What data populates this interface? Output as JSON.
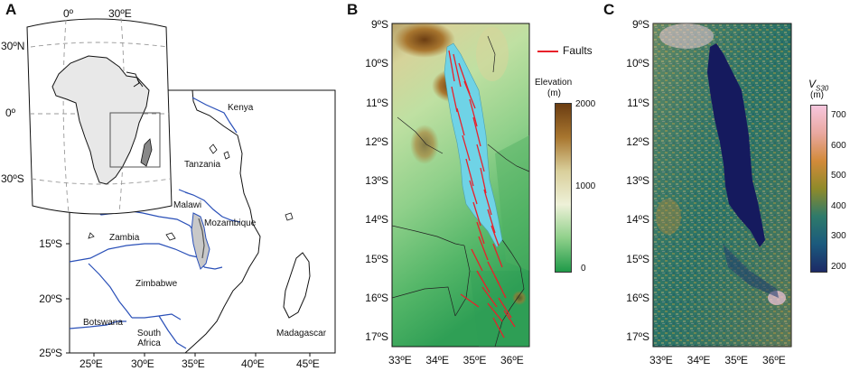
{
  "panels": {
    "a": {
      "letter": "A",
      "inset": {
        "lon_ticks": [
          "0º",
          "30ºE"
        ],
        "lat_ticks": [
          "30ºN",
          "0º",
          "30ºS"
        ]
      },
      "lat_ticks": [
        "15ºS",
        "20ºS",
        "25ºS"
      ],
      "lon_ticks": [
        "25ºE",
        "30ºE",
        "35ºE",
        "40ºE",
        "45ºE"
      ],
      "countries": [
        "Kenya",
        "Tanzania",
        "Malawi",
        "Mozambique",
        "Zambia",
        "Zimbabwe",
        "Botswana",
        "South Africa",
        "Madagascar"
      ]
    },
    "b": {
      "letter": "B",
      "lat_ticks": [
        "9ºS",
        "10ºS",
        "11ºS",
        "12ºS",
        "13ºS",
        "14ºS",
        "15ºS",
        "16ºS",
        "17ºS"
      ],
      "lon_ticks": [
        "33ºE",
        "34ºE",
        "35ºE",
        "36ºE"
      ],
      "legend_faults": "Faults",
      "colorbar": {
        "title": "Elevation",
        "unit": "(m)",
        "ticks": [
          "2000",
          "1000",
          "0"
        ],
        "colors": [
          "#6b3d12",
          "#a8762f",
          "#d9cf9b",
          "#eef1d8",
          "#8fd08a",
          "#1f9a49"
        ]
      }
    },
    "c": {
      "letter": "C",
      "lat_ticks": [
        "9ºS",
        "10ºS",
        "11ºS",
        "12ºS",
        "13ºS",
        "14ºS",
        "15ºS",
        "16ºS",
        "17ºS"
      ],
      "lon_ticks": [
        "33ºE",
        "34ºE",
        "35ºE",
        "36ºE"
      ],
      "colorbar": {
        "title_main": "V",
        "title_sub": "S30",
        "unit": "(m)",
        "ticks": [
          "700",
          "600",
          "500",
          "400",
          "300",
          "200"
        ],
        "colors": [
          "#f6c6dd",
          "#e9a8a0",
          "#d28a3a",
          "#8f8a2a",
          "#2e7a6a",
          "#1b5a7d",
          "#1c2a66"
        ]
      }
    }
  },
  "colors": {
    "lake": "#6fd3e6",
    "fault": "#e8202a",
    "border": "#2a50b8",
    "lake_c": "#151a5e"
  }
}
